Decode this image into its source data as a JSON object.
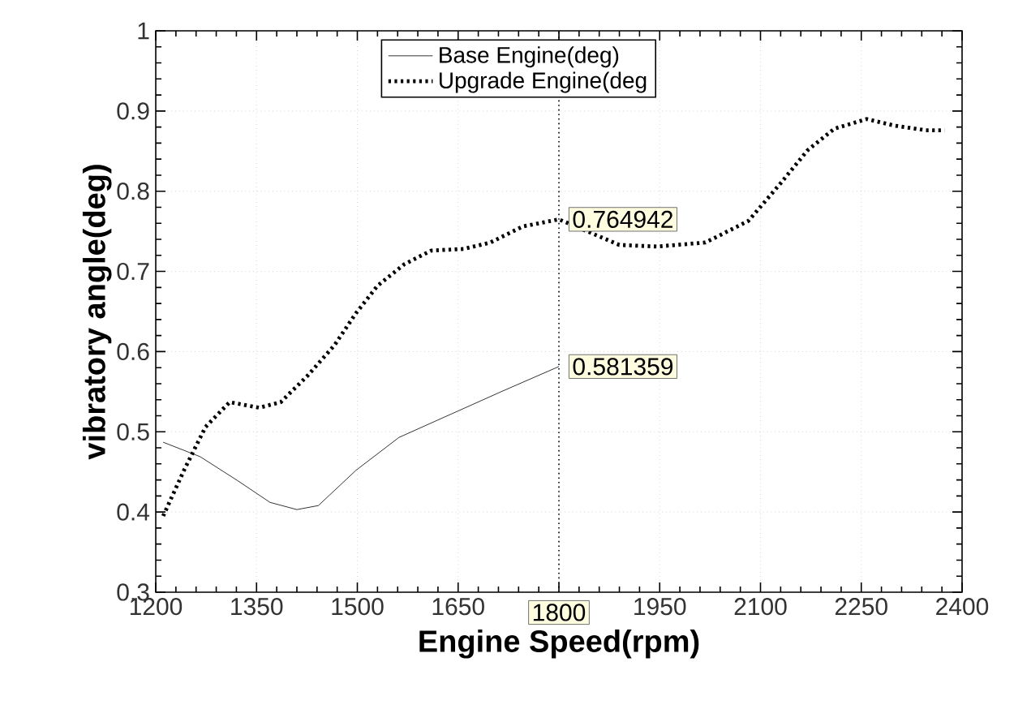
{
  "chart_data": {
    "type": "line",
    "xlabel": "Engine Speed(rpm)",
    "ylabel": "vibratory angle(deg)",
    "xlim": [
      1200,
      2400
    ],
    "ylim": [
      0.3,
      1.0
    ],
    "xticks": [
      1200,
      1350,
      1500,
      1650,
      {
        "value": 1800,
        "label": null
      },
      1950,
      2100,
      2250,
      2400
    ],
    "yticks": [
      0.3,
      0.4,
      0.5,
      0.6,
      0.7,
      0.8,
      0.9,
      1
    ],
    "grid": true,
    "legend": "top",
    "marker": "none",
    "series": [
      {
        "name": "Base Engine(deg)",
        "color": "#000000",
        "line_style": "solid",
        "x": [
          1211,
          1266,
          1322,
          1370,
          1410,
          1442,
          1498,
          1562,
          1642,
          1714,
          1800
        ],
        "values": [
          0.487,
          0.469,
          0.439,
          0.412,
          0.403,
          0.408,
          0.452,
          0.493,
          0.523,
          0.55,
          0.581359
        ]
      },
      {
        "name": "Upgrade Engine(deg",
        "color": "#000000",
        "line_style": "dotted",
        "x": [
          1211,
          1242,
          1274,
          1310,
          1354,
          1386,
          1426,
          1466,
          1498,
          1530,
          1570,
          1610,
          1658,
          1698,
          1746,
          1800,
          1890,
          1946,
          2018,
          2082,
          2130,
          2170,
          2210,
          2258,
          2298,
          2346,
          2374
        ],
        "values": [
          0.395,
          0.452,
          0.506,
          0.537,
          0.53,
          0.537,
          0.57,
          0.608,
          0.648,
          0.682,
          0.709,
          0.726,
          0.728,
          0.736,
          0.756,
          0.764942,
          0.733,
          0.731,
          0.736,
          0.763,
          0.81,
          0.851,
          0.878,
          0.89,
          0.882,
          0.876,
          0.876
        ]
      }
    ],
    "ref_lines": [
      {
        "axis": "x",
        "value": 1800,
        "label": "1800",
        "line_style": "dotted"
      }
    ],
    "annotations": [
      {
        "text": "0.764942",
        "x": 1800,
        "y": 0.764942
      },
      {
        "text": "0.581359",
        "x": 1800,
        "y": 0.581359
      }
    ]
  }
}
